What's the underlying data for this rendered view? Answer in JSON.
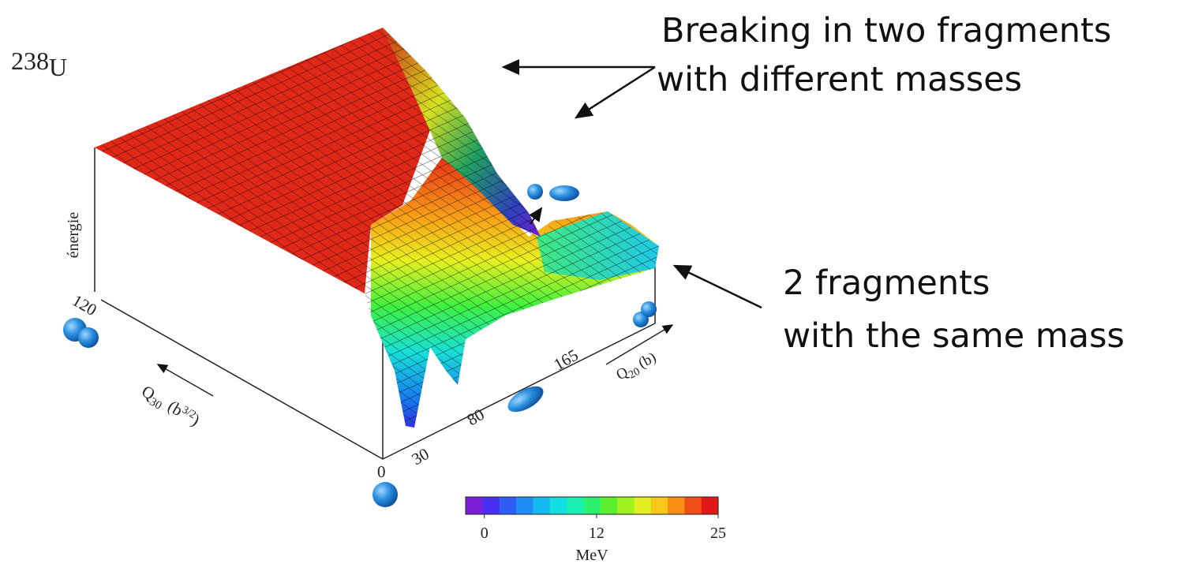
{
  "nucleus": {
    "mass_number": "238",
    "symbol": "U"
  },
  "annotations": [
    {
      "lines": [
        "Breaking in two fragments",
        "with different masses"
      ]
    },
    {
      "lines": [
        "2 fragments",
        "with the same mass"
      ]
    }
  ],
  "axes": {
    "energy_label": "énergie",
    "q30": {
      "base": "Q",
      "sub": "30",
      "unit": "(b",
      "unit_sup": "3/2",
      "close": ")",
      "ticks": [
        0,
        120
      ]
    },
    "q20": {
      "base": "Q",
      "sub": "20",
      "unit": "(b)",
      "ticks": [
        30,
        80,
        165
      ]
    }
  },
  "colorbar": {
    "lim": [
      -2,
      25
    ],
    "ticks": [
      0,
      12,
      25
    ],
    "label": "MeV",
    "colors": [
      "#7a1fd6",
      "#4b2ff0",
      "#2f5cf5",
      "#1f8cf5",
      "#16b8f0",
      "#12e0e0",
      "#18f0b0",
      "#2cf070",
      "#5af030",
      "#a0f020",
      "#e0f020",
      "#f8c818",
      "#f89018",
      "#f05018",
      "#e01818"
    ]
  }
}
